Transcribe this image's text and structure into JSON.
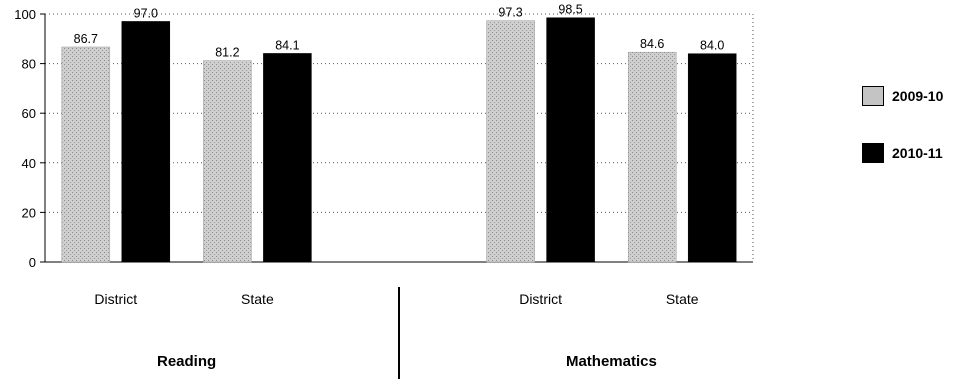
{
  "chart_data": {
    "type": "bar",
    "groups": [
      {
        "name": "Reading",
        "categories": [
          "District",
          "State"
        ]
      },
      {
        "name": "Mathematics",
        "categories": [
          "District",
          "State"
        ]
      }
    ],
    "categories": [
      "District",
      "State",
      "District",
      "State"
    ],
    "series": [
      {
        "name": "2009-10",
        "values": [
          86.7,
          81.2,
          97.3,
          84.6
        ],
        "labels": [
          "86.7",
          "81.2",
          "97.3",
          "84.6"
        ],
        "color": "#c4c4c4"
      },
      {
        "name": "2010-11",
        "values": [
          97.0,
          84.1,
          98.5,
          84.0
        ],
        "labels": [
          "97.0",
          "84.1",
          "98.5",
          "84.0"
        ],
        "color": "#000000"
      }
    ],
    "yticks": [
      "0",
      "20",
      "40",
      "60",
      "80",
      "100"
    ],
    "ylim": [
      0,
      100
    ],
    "grid": "dotted horizontal",
    "legend": "right",
    "title": "",
    "xlabel": "",
    "ylabel": ""
  }
}
